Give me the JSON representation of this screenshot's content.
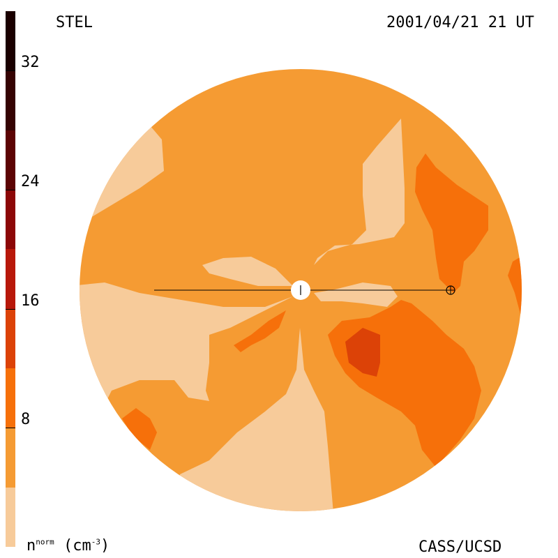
{
  "header": {
    "instrument": "STEL",
    "timestamp": "2001/04/21 21 UT"
  },
  "footer": {
    "unit_symbol": "n",
    "unit_superscript": "norm",
    "unit_paren": "(cm",
    "unit_exp": "-3",
    "unit_close": ")",
    "credit": "CASS/UCSD"
  },
  "colorbar": {
    "min": 0,
    "max": 36,
    "ticks": [
      {
        "value": 32,
        "label": "32"
      },
      {
        "value": 24,
        "label": "24"
      },
      {
        "value": 16,
        "label": "16"
      },
      {
        "value": 8,
        "label": "8"
      }
    ],
    "levels": [
      {
        "from": 0,
        "to": 4,
        "color": "#f7cb9a"
      },
      {
        "from": 4,
        "to": 8,
        "color": "#f59b33"
      },
      {
        "from": 8,
        "to": 12,
        "color": "#f6700a"
      },
      {
        "from": 12,
        "to": 16,
        "color": "#dc4207"
      },
      {
        "from": 16,
        "to": 20,
        "color": "#b8180a"
      },
      {
        "from": 20,
        "to": 24,
        "color": "#8c0707"
      },
      {
        "from": 24,
        "to": 28,
        "color": "#5c0404"
      },
      {
        "from": 28,
        "to": 32,
        "color": "#350302"
      },
      {
        "from": 32,
        "to": 36,
        "color": "#1a0000"
      }
    ]
  }
}
